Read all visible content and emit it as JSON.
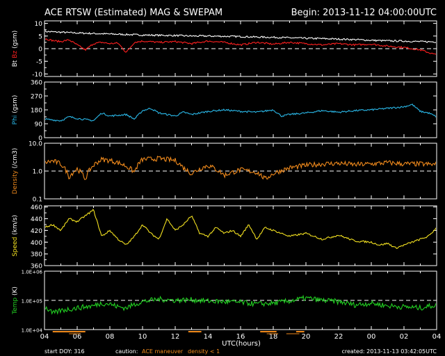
{
  "header": {
    "title": "ACE RTSW (Estimated) MAG & SWEPAM",
    "begin": "Begin: 2013-11-12 04:00:00UTC"
  },
  "footer": {
    "start_doy": "start DOY: 316",
    "caution_label": "caution:",
    "caution_maneuver": "ACE maneuver",
    "caution_density": "density < 1",
    "created": "created: 2013-11-13 03:42:05UTC"
  },
  "colors": {
    "background": "#000000",
    "axes": "#ffffff",
    "bt": "#ffffff",
    "bz": "#ff2020",
    "phi": "#2ab8e8",
    "density": "#f08a1c",
    "speed": "#f2e020",
    "temp": "#22d022",
    "maneuver": "#f08a1c"
  },
  "chart_data": {
    "type": "line",
    "x_label": "UTC(hours)",
    "x_ticks": [
      "04",
      "06",
      "08",
      "10",
      "12",
      "14",
      "16",
      "18",
      "20",
      "22",
      "00",
      "02",
      "04"
    ],
    "x_range_hours": [
      0,
      24
    ],
    "panels": [
      {
        "id": "mag",
        "ylabel_parts": [
          {
            "text": "Bt",
            "color": "#ffffff"
          },
          {
            "text": " Bz",
            "color": "#ff2020"
          },
          {
            "text": " (gsm)",
            "color": "#ffffff"
          }
        ],
        "y_ticks": [
          "10",
          "5",
          "0",
          "-5",
          "-10"
        ],
        "y_tick_values": [
          10,
          5,
          0,
          -5,
          -10
        ],
        "ylim": [
          -11,
          11
        ],
        "log": false,
        "dashed_ref": 0,
        "series": [
          {
            "name": "Bt",
            "color": "#ffffff",
            "points": [
              [
                0,
                6.8
              ],
              [
                1,
                6.5
              ],
              [
                2,
                6.2
              ],
              [
                3,
                6.0
              ],
              [
                4,
                5.8
              ],
              [
                5,
                5.6
              ],
              [
                6,
                5.4
              ],
              [
                7,
                5.3
              ],
              [
                8,
                5.2
              ],
              [
                9,
                5.0
              ],
              [
                10,
                5.0
              ],
              [
                11,
                4.9
              ],
              [
                12,
                4.8
              ],
              [
                13,
                4.6
              ],
              [
                14,
                4.5
              ],
              [
                15,
                4.3
              ],
              [
                16,
                4.1
              ],
              [
                17,
                4.0
              ],
              [
                18,
                3.8
              ],
              [
                19,
                3.6
              ],
              [
                20,
                3.3
              ],
              [
                21,
                3.1
              ],
              [
                22,
                3.0
              ],
              [
                23,
                2.8
              ],
              [
                24,
                2.7
              ]
            ]
          },
          {
            "name": "Bz",
            "color": "#ff2020",
            "points": [
              [
                0,
                4.0
              ],
              [
                0.5,
                3.2
              ],
              [
                1,
                2.8
              ],
              [
                1.5,
                3.5
              ],
              [
                2,
                1.5
              ],
              [
                2.5,
                -0.5
              ],
              [
                3,
                2.0
              ],
              [
                3.5,
                2.5
              ],
              [
                4,
                2.0
              ],
              [
                4.5,
                2.2
              ],
              [
                5,
                -1.5
              ],
              [
                5.5,
                2.5
              ],
              [
                6,
                3.0
              ],
              [
                7,
                2.5
              ],
              [
                8,
                2.8
              ],
              [
                9,
                2.0
              ],
              [
                10,
                3.0
              ],
              [
                11,
                2.5
              ],
              [
                12,
                1.5
              ],
              [
                13,
                2.5
              ],
              [
                14,
                1.8
              ],
              [
                15,
                2.5
              ],
              [
                16,
                2.0
              ],
              [
                17,
                1.5
              ],
              [
                18,
                2.0
              ],
              [
                19,
                1.5
              ],
              [
                20,
                1.8
              ],
              [
                21,
                1.0
              ],
              [
                22,
                0.5
              ],
              [
                23,
                -0.5
              ],
              [
                24,
                -2.5
              ]
            ]
          }
        ]
      },
      {
        "id": "phi",
        "ylabel_parts": [
          {
            "text": "Phi",
            "color": "#2ab8e8"
          },
          {
            "text": " (gsm)",
            "color": "#ffffff"
          }
        ],
        "y_ticks": [
          "360",
          "270",
          "180",
          "90",
          "0"
        ],
        "y_tick_values": [
          360,
          270,
          180,
          90,
          0
        ],
        "ylim": [
          0,
          360
        ],
        "log": false,
        "series": [
          {
            "name": "Phi",
            "color": "#2ab8e8",
            "points": [
              [
                0,
                120
              ],
              [
                1,
                110
              ],
              [
                1.5,
                135
              ],
              [
                2,
                125
              ],
              [
                3,
                110
              ],
              [
                3.5,
                160
              ],
              [
                4,
                140
              ],
              [
                5,
                150
              ],
              [
                5.5,
                120
              ],
              [
                6,
                175
              ],
              [
                6.5,
                190
              ],
              [
                7,
                160
              ],
              [
                8,
                140
              ],
              [
                8.5,
                165
              ],
              [
                9,
                150
              ],
              [
                10,
                170
              ],
              [
                11,
                180
              ],
              [
                12,
                170
              ],
              [
                13,
                165
              ],
              [
                14,
                180
              ],
              [
                14.5,
                140
              ],
              [
                15,
                150
              ],
              [
                16,
                160
              ],
              [
                17,
                175
              ],
              [
                18,
                165
              ],
              [
                19,
                175
              ],
              [
                20,
                180
              ],
              [
                21,
                190
              ],
              [
                22,
                200
              ],
              [
                22.5,
                215
              ],
              [
                23,
                170
              ],
              [
                23.5,
                160
              ],
              [
                24,
                135
              ]
            ]
          }
        ]
      },
      {
        "id": "density",
        "ylabel_parts": [
          {
            "text": "Density",
            "color": "#f08a1c"
          },
          {
            "text": " (/cm3)",
            "color": "#ffffff"
          }
        ],
        "y_ticks": [
          "10.0",
          "1.0",
          "0.1"
        ],
        "y_tick_values": [
          10,
          1,
          0.1
        ],
        "ylim": [
          0.1,
          10
        ],
        "log": true,
        "dashed_ref": 1,
        "series": [
          {
            "name": "Density",
            "color": "#f08a1c",
            "points": [
              [
                0,
                2.0
              ],
              [
                0.5,
                2.3
              ],
              [
                1,
                1.8
              ],
              [
                1.5,
                0.6
              ],
              [
                2,
                1.2
              ],
              [
                2.5,
                0.5
              ],
              [
                3,
                1.6
              ],
              [
                3.5,
                2.6
              ],
              [
                4,
                2.4
              ],
              [
                4.5,
                2.0
              ],
              [
                5,
                1.5
              ],
              [
                5.5,
                0.9
              ],
              [
                6,
                2.6
              ],
              [
                7,
                2.8
              ],
              [
                8,
                2.4
              ],
              [
                8.5,
                1.3
              ],
              [
                9,
                0.8
              ],
              [
                10,
                1.6
              ],
              [
                11,
                0.7
              ],
              [
                12,
                1.1
              ],
              [
                13,
                0.9
              ],
              [
                13.5,
                0.5
              ],
              [
                14,
                0.8
              ],
              [
                15,
                1.3
              ],
              [
                16,
                1.6
              ],
              [
                17,
                1.8
              ],
              [
                18,
                1.9
              ],
              [
                19,
                1.7
              ],
              [
                20,
                1.8
              ],
              [
                21,
                2.0
              ],
              [
                22,
                1.8
              ],
              [
                23,
                1.8
              ],
              [
                24,
                1.7
              ]
            ]
          }
        ]
      },
      {
        "id": "speed",
        "ylabel_parts": [
          {
            "text": "Speed",
            "color": "#f2e020"
          },
          {
            "text": " (km/s)",
            "color": "#ffffff"
          }
        ],
        "y_ticks": [
          "460",
          "440",
          "420",
          "400",
          "380",
          "360"
        ],
        "y_tick_values": [
          460,
          440,
          420,
          400,
          380,
          360
        ],
        "ylim": [
          360,
          462
        ],
        "log": false,
        "series": [
          {
            "name": "Speed",
            "color": "#f2e020",
            "points": [
              [
                0,
                425
              ],
              [
                0.5,
                430
              ],
              [
                1,
                420
              ],
              [
                1.5,
                440
              ],
              [
                2,
                435
              ],
              [
                2.5,
                445
              ],
              [
                3,
                455
              ],
              [
                3.5,
                410
              ],
              [
                4,
                420
              ],
              [
                4.5,
                405
              ],
              [
                5,
                395
              ],
              [
                5.5,
                410
              ],
              [
                6,
                430
              ],
              [
                6.5,
                415
              ],
              [
                7,
                405
              ],
              [
                7.5,
                440
              ],
              [
                8,
                420
              ],
              [
                8.5,
                430
              ],
              [
                9,
                445
              ],
              [
                9.5,
                415
              ],
              [
                10,
                410
              ],
              [
                10.5,
                425
              ],
              [
                11,
                415
              ],
              [
                11.5,
                420
              ],
              [
                12,
                410
              ],
              [
                12.5,
                430
              ],
              [
                13,
                405
              ],
              [
                13.5,
                425
              ],
              [
                14,
                420
              ],
              [
                15,
                410
              ],
              [
                16,
                415
              ],
              [
                17,
                405
              ],
              [
                18,
                412
              ],
              [
                19,
                402
              ],
              [
                20,
                400
              ],
              [
                20.5,
                395
              ],
              [
                21,
                398
              ],
              [
                21.5,
                390
              ],
              [
                22,
                395
              ],
              [
                22.5,
                400
              ],
              [
                23,
                405
              ],
              [
                23.5,
                410
              ],
              [
                24,
                425
              ]
            ]
          }
        ]
      },
      {
        "id": "temp",
        "ylabel_parts": [
          {
            "text": "Temp",
            "color": "#22d022"
          },
          {
            "text": " (K)",
            "color": "#ffffff"
          }
        ],
        "y_ticks": [
          "1.0E+06",
          "1.0E+05",
          "1.0E+04"
        ],
        "y_tick_values": [
          1000000,
          100000,
          10000
        ],
        "ylim": [
          10000,
          1000000
        ],
        "log": true,
        "dashed_ref": 100000,
        "series": [
          {
            "name": "Temp",
            "color": "#22d022",
            "points": [
              [
                0,
                60000
              ],
              [
                0.5,
                35000
              ],
              [
                1,
                45000
              ],
              [
                1.5,
                50000
              ],
              [
                2,
                55000
              ],
              [
                3,
                65000
              ],
              [
                3.5,
                80000
              ],
              [
                4,
                75000
              ],
              [
                4.5,
                60000
              ],
              [
                5,
                55000
              ],
              [
                6,
                90000
              ],
              [
                7,
                110000
              ],
              [
                8,
                100000
              ],
              [
                9,
                105000
              ],
              [
                10,
                95000
              ],
              [
                11,
                90000
              ],
              [
                12,
                85000
              ],
              [
                13,
                75000
              ],
              [
                14,
                80000
              ],
              [
                15,
                95000
              ],
              [
                16,
                120000
              ],
              [
                17,
                100000
              ],
              [
                18,
                90000
              ],
              [
                19,
                70000
              ],
              [
                20,
                80000
              ],
              [
                21,
                65000
              ],
              [
                22,
                60000
              ],
              [
                23,
                55000
              ],
              [
                24,
                70000
              ]
            ]
          }
        ]
      }
    ],
    "maneuver_segments_hours": [
      [
        0.5,
        2.5
      ],
      [
        8.8,
        9.6
      ],
      [
        13.2,
        14.2
      ],
      [
        15.4,
        15.9
      ]
    ],
    "low_density_segments_hours": [
      [
        1.5,
        2.2
      ],
      [
        13.6,
        14.3
      ],
      [
        14.8,
        15.6
      ]
    ]
  }
}
